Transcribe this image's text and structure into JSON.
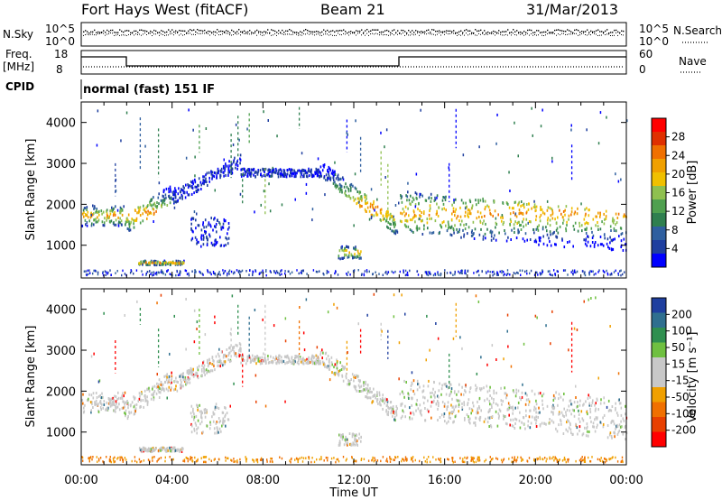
{
  "header": {
    "station": "Fort Hays West (fitACF)",
    "beam": "Beam 21",
    "date": "31/Mar/2013"
  },
  "strips": {
    "nsky_label": "N.Sky",
    "nsearch_label": "N.Search",
    "freq_label_1": "Freq.",
    "freq_label_2": "[MHz]",
    "nave_label": "Nave",
    "cpid_label": "CPID",
    "cpid_value": "normal (fast) 151 IF",
    "noise_ticks_left": [
      "10^5",
      "10^0"
    ],
    "noise_ticks_right": [
      "10^5",
      "10^0"
    ],
    "freq_ticks": [
      "18",
      "8"
    ],
    "nave_ticks": [
      "60",
      "0"
    ]
  },
  "colors": {
    "power": [
      "#0000ff",
      "#1f3f9f",
      "#2f5f9f",
      "#2f7f4f",
      "#4fa04f",
      "#8fc04f",
      "#f0c000",
      "#f0a000",
      "#f07000",
      "#e03000",
      "#ff0000"
    ],
    "velocity": [
      "#ff0000",
      "#e84000",
      "#f07000",
      "#f0a000",
      "#c8c8c8",
      "#c8c8c8",
      "#6fc040",
      "#2f8f4f",
      "#2f6f8f",
      "#1f3f9f"
    ]
  },
  "chart_data": [
    {
      "type": "heatmap",
      "name": "power",
      "ylabel": "Slant Range [km]",
      "y_ticks": [
        1000,
        2000,
        3000,
        4000
      ],
      "ylim": [
        200,
        4500
      ],
      "x_ticks": [
        "00:00",
        "04:00",
        "08:00",
        "12:00",
        "16:00",
        "20:00",
        "00:00"
      ],
      "xlim_hours": [
        0,
        24
      ],
      "colorbar_label": "Power [dB]",
      "colorbar_ticks": [
        "4",
        "8",
        "12",
        "16",
        "20",
        "24",
        "28"
      ],
      "bands": [
        {
          "t0": 0.0,
          "t1": 1.9,
          "r0": 1500,
          "r1": 2000
        },
        {
          "t0": 1.9,
          "t1": 4.0,
          "r0": 1300,
          "r1": 2300
        },
        {
          "t0": 4.0,
          "t1": 7.0,
          "r0": 2000,
          "r1": 3300
        },
        {
          "t0": 7.0,
          "t1": 10.5,
          "r0": 2700,
          "r1": 2900
        },
        {
          "t0": 10.5,
          "t1": 13.9,
          "r0": 1200,
          "r1": 2700
        },
        {
          "t0": 14.0,
          "t1": 24.0,
          "r0": 1200,
          "r1": 2400
        },
        {
          "t0": 4.8,
          "t1": 6.5,
          "r0": 1000,
          "r1": 1700
        },
        {
          "t0": 11.3,
          "t1": 12.3,
          "r0": 700,
          "r1": 1000
        },
        {
          "t0": 2.5,
          "t1": 4.5,
          "r0": 550,
          "r1": 650
        }
      ]
    },
    {
      "type": "heatmap",
      "name": "velocity",
      "ylabel": "Slant Range [km]",
      "y_ticks": [
        1000,
        2000,
        3000,
        4000
      ],
      "ylim": [
        200,
        4500
      ],
      "x_ticks": [
        "00:00",
        "04:00",
        "08:00",
        "12:00",
        "16:00",
        "20:00",
        "00:00"
      ],
      "xlim_hours": [
        0,
        24
      ],
      "xlabel": "Time UT",
      "colorbar_label": "Velocity [m s⁻¹]",
      "colorbar_ticks": [
        "200",
        "100",
        "50",
        "15",
        "-15",
        "-50",
        "-100",
        "-200"
      ]
    }
  ]
}
